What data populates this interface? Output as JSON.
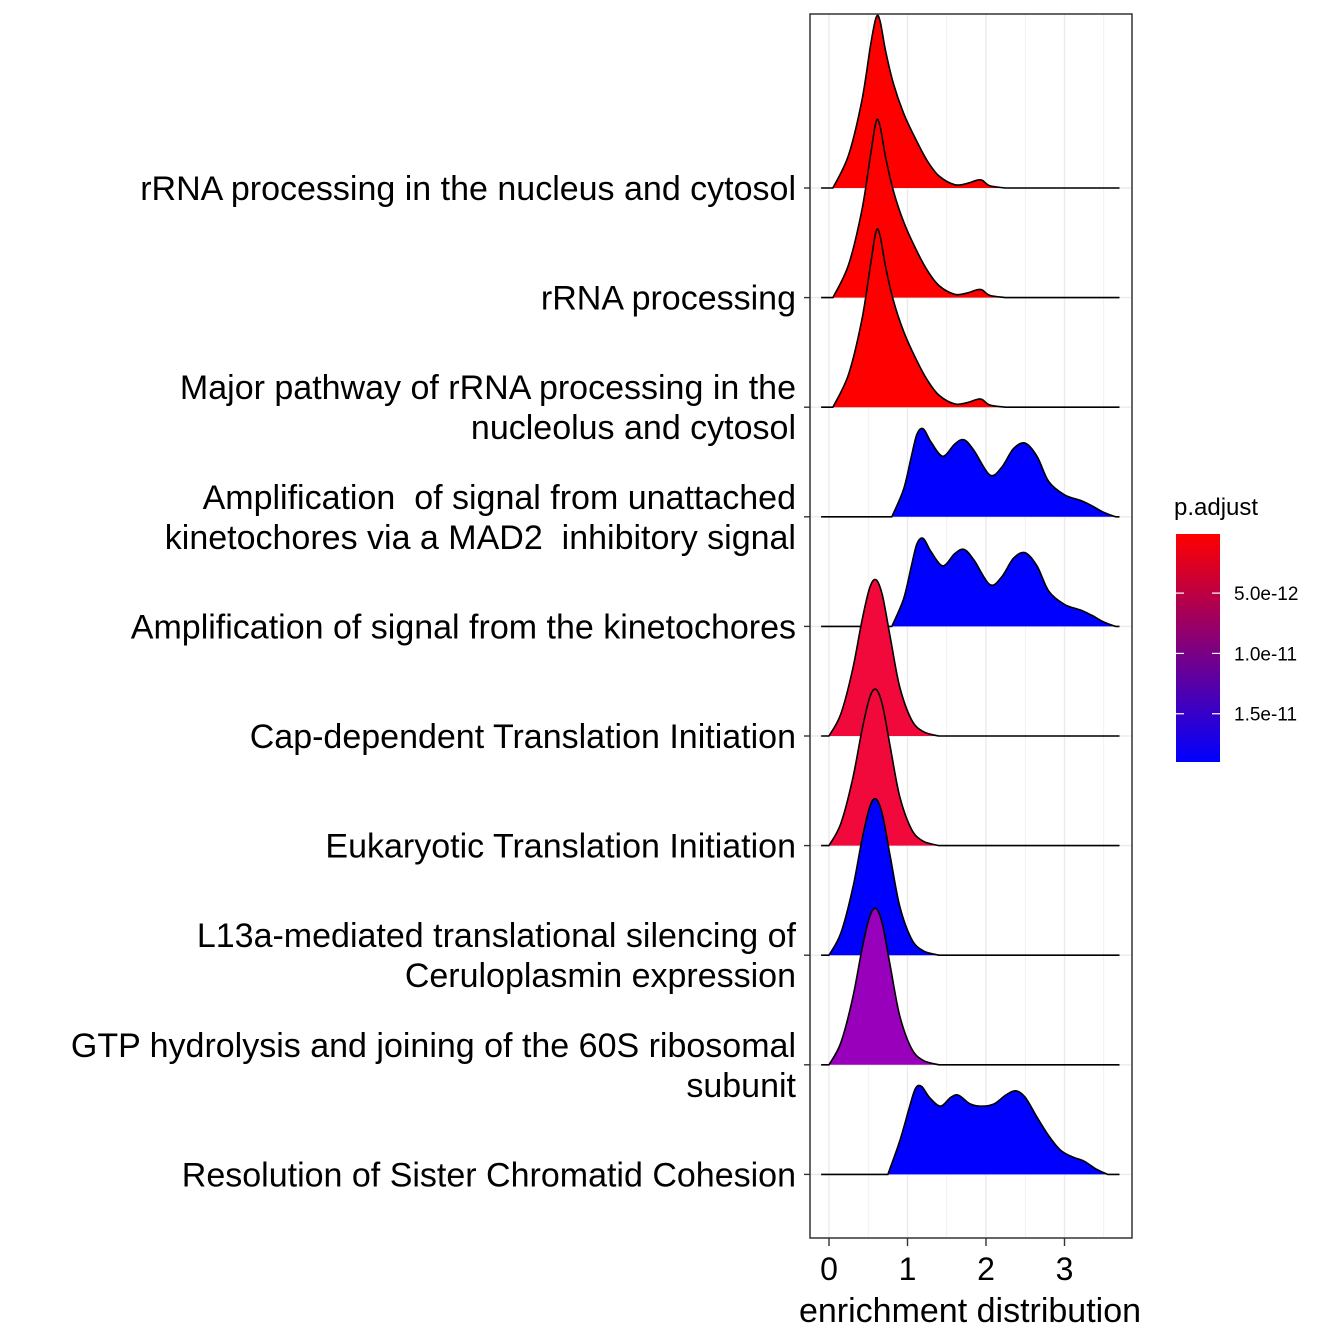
{
  "chart_data": {
    "type": "ridgeline",
    "xlabel": "enrichment distribution",
    "x_ticks": [
      0,
      1,
      2,
      3
    ],
    "xlim": [
      -0.28,
      3.85
    ],
    "grid": true,
    "legend": {
      "title": "p.adjust",
      "placement": "right",
      "gradient": [
        "#FF0000",
        "#0000FF"
      ],
      "ticks": [
        {
          "label": "5.0e-12",
          "value": 5e-12
        },
        {
          "label": "1.0e-11",
          "value": 1e-11
        },
        {
          "label": "1.5e-11",
          "value": 1.5e-11
        }
      ],
      "range": [
        1e-13,
        1.9e-11
      ]
    },
    "series": [
      {
        "name": "rRNA processing in the nucleus and cytosol",
        "label_lines": [
          "rRNA processing in the nucleus and cytosol"
        ],
        "color": "#FF0000",
        "x": [
          0.05,
          0.25,
          0.42,
          0.53,
          0.6,
          0.65,
          0.72,
          0.82,
          0.95,
          1.1,
          1.25,
          1.4,
          1.6,
          1.75,
          1.88,
          1.95,
          2.05,
          2.25
        ],
        "density": [
          0.0,
          0.3,
          0.8,
          1.3,
          1.55,
          1.52,
          1.25,
          0.95,
          0.68,
          0.45,
          0.25,
          0.11,
          0.03,
          0.04,
          0.07,
          0.07,
          0.02,
          0.0
        ],
        "xmin": -0.1,
        "xmax": 3.7
      },
      {
        "name": "rRNA processing",
        "label_lines": [
          "rRNA processing"
        ],
        "color": "#FF0000",
        "x": [
          0.05,
          0.25,
          0.42,
          0.53,
          0.6,
          0.65,
          0.72,
          0.82,
          0.95,
          1.1,
          1.25,
          1.4,
          1.6,
          1.75,
          1.88,
          1.95,
          2.05,
          2.25
        ],
        "density": [
          0.0,
          0.3,
          0.8,
          1.3,
          1.6,
          1.56,
          1.28,
          0.97,
          0.69,
          0.45,
          0.25,
          0.11,
          0.03,
          0.04,
          0.07,
          0.07,
          0.02,
          0.0
        ],
        "xmin": -0.1,
        "xmax": 3.7
      },
      {
        "name": "Major pathway of rRNA processing in the nucleolus and cytosol",
        "label_lines": [
          "Major pathway of rRNA processing in the",
          "nucleolus and cytosol"
        ],
        "color": "#FF0000",
        "x": [
          0.05,
          0.25,
          0.42,
          0.53,
          0.6,
          0.65,
          0.72,
          0.82,
          0.95,
          1.1,
          1.25,
          1.4,
          1.6,
          1.75,
          1.88,
          1.95,
          2.05,
          2.25
        ],
        "density": [
          0.0,
          0.3,
          0.8,
          1.3,
          1.6,
          1.56,
          1.28,
          0.97,
          0.69,
          0.45,
          0.25,
          0.11,
          0.03,
          0.04,
          0.07,
          0.07,
          0.02,
          0.0
        ],
        "xmin": -0.1,
        "xmax": 3.7
      },
      {
        "name": "Amplification of signal from unattached kinetochores via a MAD2 inhibitory signal",
        "label_lines": [
          "Amplification  of signal from unattached",
          "kinetochores via a MAD2  inhibitory signal"
        ],
        "color": "#0000FF",
        "x": [
          0.8,
          0.95,
          1.05,
          1.12,
          1.2,
          1.3,
          1.45,
          1.6,
          1.72,
          1.85,
          2.05,
          2.2,
          2.35,
          2.5,
          2.65,
          2.8,
          3.0,
          3.2,
          3.35,
          3.5,
          3.65
        ],
        "density": [
          0.0,
          0.25,
          0.55,
          0.75,
          0.8,
          0.68,
          0.55,
          0.66,
          0.7,
          0.6,
          0.38,
          0.45,
          0.62,
          0.67,
          0.55,
          0.32,
          0.2,
          0.15,
          0.1,
          0.04,
          0.0
        ],
        "xmin": -0.1,
        "xmax": 3.7
      },
      {
        "name": "Amplification of signal from the kinetochores",
        "label_lines": [
          "Amplification of signal from the kinetochores"
        ],
        "color": "#0000FF",
        "x": [
          0.8,
          0.95,
          1.05,
          1.12,
          1.2,
          1.3,
          1.45,
          1.6,
          1.72,
          1.85,
          2.05,
          2.2,
          2.35,
          2.5,
          2.65,
          2.8,
          3.0,
          3.2,
          3.35,
          3.5,
          3.65
        ],
        "density": [
          0.0,
          0.25,
          0.55,
          0.75,
          0.8,
          0.68,
          0.55,
          0.66,
          0.7,
          0.6,
          0.38,
          0.45,
          0.62,
          0.67,
          0.55,
          0.32,
          0.2,
          0.15,
          0.1,
          0.04,
          0.0
        ],
        "xmin": -0.1,
        "xmax": 3.7
      },
      {
        "name": "Cap-dependent Translation Initiation",
        "label_lines": [
          "Cap-dependent Translation Initiation"
        ],
        "color": "#F0093A",
        "x": [
          0.0,
          0.15,
          0.3,
          0.42,
          0.52,
          0.6,
          0.68,
          0.78,
          0.9,
          1.05,
          1.2,
          1.4
        ],
        "density": [
          0.0,
          0.2,
          0.6,
          1.05,
          1.35,
          1.42,
          1.28,
          0.9,
          0.45,
          0.15,
          0.04,
          0.0
        ],
        "xmin": -0.1,
        "xmax": 3.7
      },
      {
        "name": "Eukaryotic Translation Initiation",
        "label_lines": [
          "Eukaryotic Translation Initiation"
        ],
        "color": "#F0093A",
        "x": [
          0.0,
          0.15,
          0.3,
          0.42,
          0.52,
          0.6,
          0.68,
          0.78,
          0.9,
          1.05,
          1.2,
          1.4
        ],
        "density": [
          0.0,
          0.2,
          0.6,
          1.05,
          1.35,
          1.42,
          1.28,
          0.9,
          0.45,
          0.15,
          0.04,
          0.0
        ],
        "xmin": -0.1,
        "xmax": 3.7
      },
      {
        "name": "L13a-mediated translational silencing of Ceruloplasmin expression",
        "label_lines": [
          "L13a-mediated translational silencing of",
          "Ceruloplasmin expression"
        ],
        "color": "#0000FF",
        "x": [
          0.0,
          0.15,
          0.3,
          0.42,
          0.52,
          0.6,
          0.68,
          0.78,
          0.9,
          1.05,
          1.2,
          1.4
        ],
        "density": [
          0.0,
          0.2,
          0.6,
          1.05,
          1.35,
          1.42,
          1.28,
          0.9,
          0.45,
          0.15,
          0.04,
          0.0
        ],
        "xmin": -0.1,
        "xmax": 3.7
      },
      {
        "name": "GTP hydrolysis and joining of the 60S ribosomal subunit",
        "label_lines": [
          "GTP hydrolysis and joining of the 60S ribosomal",
          "subunit"
        ],
        "color": "#9900BB",
        "x": [
          0.0,
          0.15,
          0.3,
          0.42,
          0.52,
          0.6,
          0.68,
          0.78,
          0.9,
          1.05,
          1.2,
          1.4
        ],
        "density": [
          0.0,
          0.2,
          0.6,
          1.05,
          1.35,
          1.42,
          1.28,
          0.9,
          0.45,
          0.15,
          0.04,
          0.0
        ],
        "xmin": -0.1,
        "xmax": 3.7
      },
      {
        "name": "Resolution of Sister Chromatid Cohesion",
        "label_lines": [
          "Resolution of Sister Chromatid Cohesion"
        ],
        "color": "#0000FF",
        "x": [
          0.75,
          0.9,
          1.02,
          1.1,
          1.18,
          1.28,
          1.42,
          1.55,
          1.65,
          1.8,
          1.95,
          2.1,
          2.25,
          2.38,
          2.5,
          2.65,
          2.8,
          2.95,
          3.1,
          3.25,
          3.4,
          3.55
        ],
        "density": [
          0.0,
          0.3,
          0.6,
          0.78,
          0.8,
          0.7,
          0.62,
          0.7,
          0.72,
          0.64,
          0.62,
          0.64,
          0.72,
          0.76,
          0.7,
          0.52,
          0.35,
          0.22,
          0.16,
          0.12,
          0.05,
          0.0
        ],
        "xmin": -0.1,
        "xmax": 3.7
      }
    ]
  }
}
